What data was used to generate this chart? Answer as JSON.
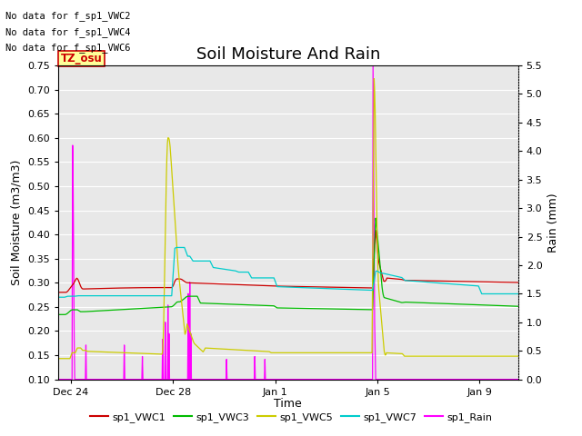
{
  "title": "Soil Moisture And Rain",
  "xlabel": "Time",
  "ylabel_left": "Soil Moisture (m3/m3)",
  "ylabel_right": "Rain (mm)",
  "ylim_left": [
    0.1,
    0.75
  ],
  "ylim_right": [
    0.0,
    5.5
  ],
  "yticks_left": [
    0.1,
    0.15,
    0.2,
    0.25,
    0.3,
    0.35,
    0.4,
    0.45,
    0.5,
    0.55,
    0.6,
    0.65,
    0.7,
    0.75
  ],
  "yticks_right": [
    0.0,
    0.5,
    1.0,
    1.5,
    2.0,
    2.5,
    3.0,
    3.5,
    4.0,
    4.5,
    5.0,
    5.5
  ],
  "xtick_labels": [
    "Dec 24",
    "Dec 28",
    "Jan 1",
    "Jan 5",
    "Jan 9"
  ],
  "no_data_texts": [
    "No data for f_sp1_VWC2",
    "No data for f_sp1_VWC4",
    "No data for f_sp1_VWC6"
  ],
  "watermark_text": "TZ_osu",
  "watermark_color": "#cc0000",
  "watermark_bg": "#ffff99",
  "colors": {
    "sp1_VWC1": "#cc0000",
    "sp1_VWC3": "#00bb00",
    "sp1_VWC5": "#cccc00",
    "sp1_VWC7": "#00cccc",
    "sp1_Rain": "#ff00ff"
  },
  "legend_labels": [
    "sp1_VWC1",
    "sp1_VWC3",
    "sp1_VWC5",
    "sp1_VWC7",
    "sp1_Rain"
  ],
  "bg_color": "#e8e8e8",
  "grid_color": "#ffffff",
  "title_fontsize": 13,
  "axis_fontsize": 9,
  "tick_fontsize": 8
}
